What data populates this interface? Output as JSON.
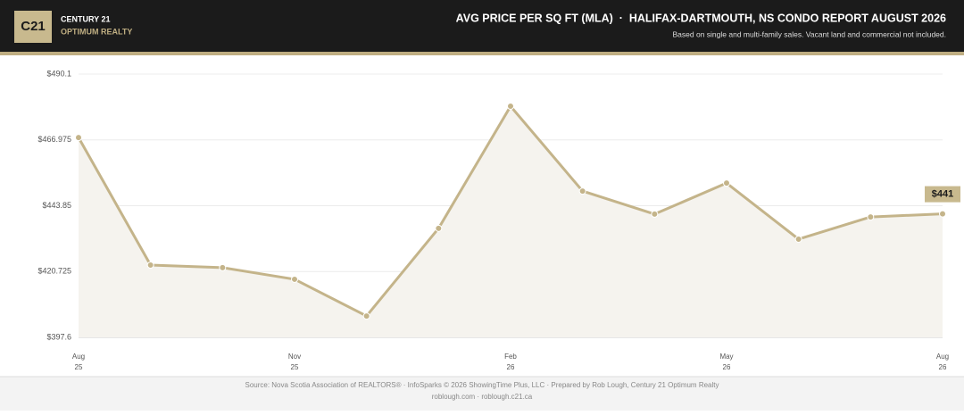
{
  "header": {
    "logo": "C21",
    "brand": "CENTURY 21",
    "office": "OPTIMUM REALTY"
  },
  "chart_data": {
    "type": "line",
    "title": "AVG PRICE PER SQ FT (MLA)  ·  HALIFAX-DARTMOUTH, NS CONDO REPORT AUGUST 2026",
    "subtitle": "Based on single and multi-family sales. Vacant land and commercial not included.",
    "categories": [
      [
        "Aug",
        "25"
      ],
      null,
      null,
      [
        "Nov",
        "25"
      ],
      null,
      null,
      [
        "Feb",
        "26"
      ],
      null,
      null,
      [
        "May",
        "26"
      ],
      null,
      null,
      [
        "Aug",
        "26"
      ]
    ],
    "values": [
      467.8,
      423.0,
      422.1,
      418.0,
      405.1,
      435.9,
      478.8,
      449.0,
      440.9,
      451.8,
      432.1,
      439.9,
      441
    ],
    "value_labels": [
      null,
      null,
      null,
      null,
      null,
      null,
      null,
      null,
      null,
      null,
      null,
      null,
      "$441"
    ],
    "color": "#c4b48a",
    "ylim": [
      397.6,
      490.1
    ],
    "yticks": [
      {
        "value": 397.6,
        "label": "$397.6"
      },
      {
        "value": 420.725,
        "label": "$420.725"
      },
      {
        "value": 443.85,
        "label": "$443.85"
      },
      {
        "value": 466.975,
        "label": "$466.975"
      },
      {
        "value": 490.1,
        "label": "$490.1"
      }
    ],
    "grid": true
  },
  "footer": {
    "source": "Source: Nova Scotia Association of REALTORS® · InfoSparks © 2026 ShowingTime Plus, LLC · Prepared by Rob Lough, Century 21 Optimum Realty",
    "links": "roblough.com · roblough.c21.ca"
  }
}
